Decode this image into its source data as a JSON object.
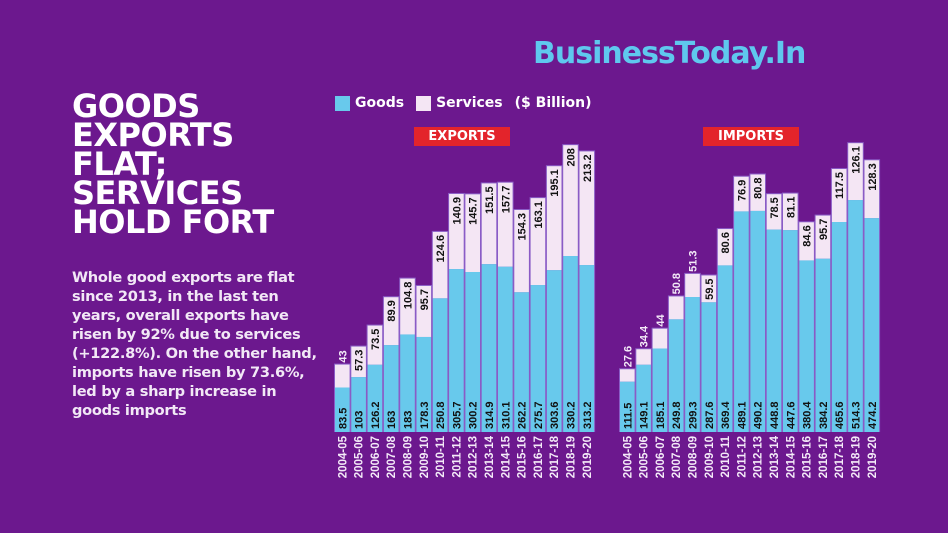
{
  "brand": "BusinessToday.In",
  "headline": [
    "GOODS",
    "EXPORTS",
    "FLAT;",
    "SERVICES",
    "HOLD FORT"
  ],
  "blurb": "Whole good exports are flat since 2013, in the last ten years, overall exports have risen by 92% due to services (+122.8%). On the other hand, imports have risen by 73.6%, led by a sharp increase in goods imports",
  "legend": {
    "goods": "Goods",
    "services": "Services",
    "unit": "($ Billion)"
  },
  "colors": {
    "background": "#6c188e",
    "goods": "#68c9ec",
    "services": "#f4e6f4",
    "title_badge": "#e3242b",
    "brand": "#5fc8ee"
  },
  "chart_data": [
    {
      "type": "bar",
      "stacked": true,
      "title": "EXPORTS",
      "unit": "$ Billion",
      "categories": [
        "2004-05",
        "2005-06",
        "2006-07",
        "2007-08",
        "2008-09",
        "2009-10",
        "2010-11",
        "2011-12",
        "2012-13",
        "2013-14",
        "2014-15",
        "2015-16",
        "2016-17",
        "2017-18",
        "2018-19",
        "2019-20"
      ],
      "series": [
        {
          "name": "Goods",
          "values": [
            83.5,
            103,
            126.2,
            163,
            183,
            178.3,
            250.8,
            305.7,
            300.2,
            314.9,
            310.1,
            262.2,
            275.7,
            303.6,
            330.2,
            313.2
          ]
        },
        {
          "name": "Services",
          "values": [
            43,
            57.3,
            73.5,
            89.9,
            104.8,
            95.7,
            124.6,
            140.9,
            145.7,
            151.5,
            157.7,
            154.3,
            163.1,
            195.1,
            208,
            213.2
          ]
        }
      ],
      "value_labels": {
        "goods": [
          "83.5",
          "103",
          "126.2",
          "163",
          "183",
          "178.3",
          "250.8",
          "305.7",
          "300.2",
          "314.9",
          "310.1",
          "262.2",
          "275.7",
          "303.6",
          "330.2",
          "313.2"
        ],
        "services": [
          "43",
          "57.3",
          "73.5",
          "89.9",
          "104.8",
          "95.7",
          "124.6",
          "140.9",
          "145.7",
          "151.5",
          "157.7",
          "154.3",
          "163.1",
          "195.1",
          "208",
          "213.2"
        ]
      },
      "legend_position": "top-left",
      "grid": false
    },
    {
      "type": "bar",
      "stacked": true,
      "title": "IMPORTS",
      "unit": "$ Billion",
      "categories": [
        "2004-05",
        "2005-06",
        "2006-07",
        "2007-08",
        "2008-09",
        "2009-10",
        "2010-11",
        "2011-12",
        "2012-13",
        "2013-14",
        "2014-15",
        "2015-16",
        "2016-17",
        "2017-18",
        "2018-19",
        "2019-20"
      ],
      "series": [
        {
          "name": "Goods",
          "values": [
            111.5,
            149.1,
            185.1,
            249.8,
            299.3,
            287.6,
            369.4,
            489.1,
            490.2,
            448.8,
            447.6,
            380.4,
            384.2,
            465.6,
            514.3,
            474.2
          ]
        },
        {
          "name": "Services",
          "values": [
            27.6,
            34.4,
            44,
            50.8,
            51.3,
            59.5,
            80.6,
            76.9,
            80.8,
            78.5,
            81.1,
            84.6,
            95.7,
            117.5,
            126.1,
            128.3
          ]
        }
      ],
      "value_labels": {
        "goods": [
          "111.5",
          "149.1",
          "185.1",
          "249.8",
          "299.3",
          "287.6",
          "369.4",
          "489.1",
          "490.2",
          "448.8",
          "447.6",
          "380.4",
          "384.2",
          "465.6",
          "514.3",
          "474.2"
        ],
        "services": [
          "27.6",
          "34.4",
          "44",
          "50.8",
          "51.3",
          "59.5",
          "80.6",
          "76.9",
          "80.8",
          "78.5",
          "81.1",
          "84.6",
          "95.7",
          "117.5",
          "126.1",
          "128.3"
        ]
      },
      "legend_position": "top-left",
      "grid": false
    }
  ]
}
